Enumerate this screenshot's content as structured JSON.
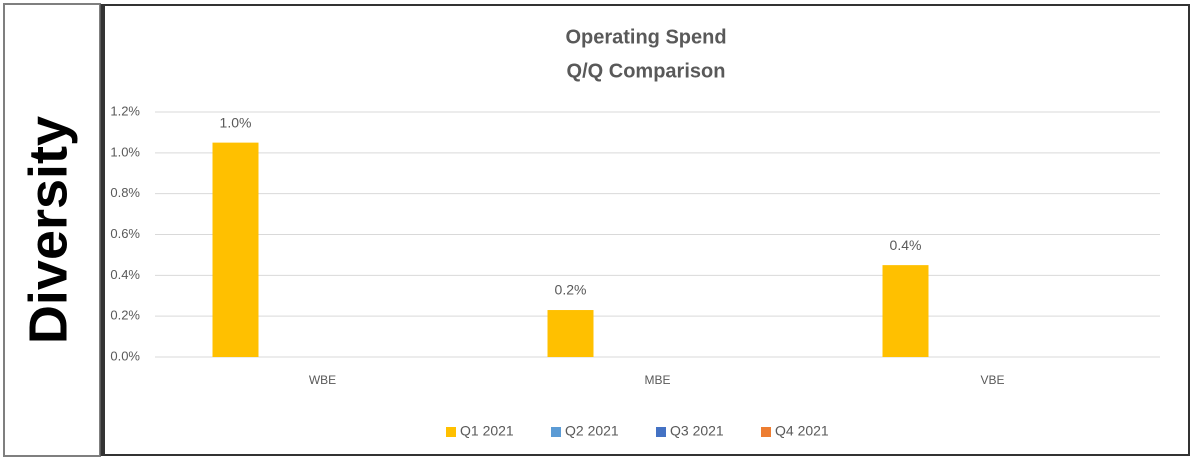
{
  "sidebar": {
    "label": "Diversity"
  },
  "chart_data": {
    "type": "bar",
    "title": [
      "Operating Spend",
      "Q/Q Comparison"
    ],
    "categories": [
      "WBE",
      "MBE",
      "VBE"
    ],
    "series": [
      {
        "name": "Q1 2021",
        "color": "#ffc000",
        "values": [
          1.05,
          0.23,
          0.45
        ],
        "value_labels": [
          "1.0%",
          "0.2%",
          "0.4%"
        ]
      },
      {
        "name": "Q2 2021",
        "color": "#5b9bd5",
        "values": [
          null,
          null,
          null
        ]
      },
      {
        "name": "Q3 2021",
        "color": "#4472c4",
        "values": [
          null,
          null,
          null
        ]
      },
      {
        "name": "Q4 2021",
        "color": "#ed7d31",
        "values": [
          null,
          null,
          null
        ]
      }
    ],
    "ylim": [
      0,
      1.2
    ],
    "yticks": [
      {
        "value": 0,
        "label": "0.0%"
      },
      {
        "value": 0.2,
        "label": "0.2%"
      },
      {
        "value": 0.4,
        "label": "0.4%"
      },
      {
        "value": 0.6,
        "label": "0.6%"
      },
      {
        "value": 0.8,
        "label": "0.8%"
      },
      {
        "value": 1.0,
        "label": "1.0%"
      },
      {
        "value": 1.2,
        "label": "1.2%"
      }
    ],
    "grid": true,
    "legend": "bottom"
  }
}
